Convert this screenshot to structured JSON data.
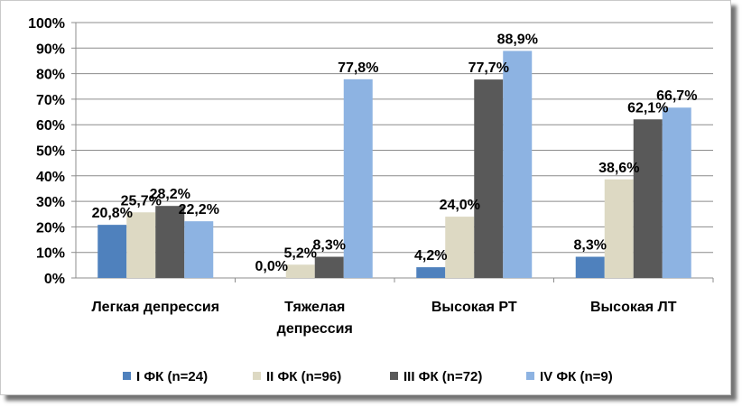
{
  "chart_data": {
    "type": "bar",
    "title": "",
    "xlabel": "",
    "ylabel": "",
    "ylim": [
      0,
      100
    ],
    "y_ticks": [
      "0%",
      "10%",
      "20%",
      "30%",
      "40%",
      "50%",
      "60%",
      "70%",
      "80%",
      "90%",
      "100%"
    ],
    "grid": true,
    "legend_position": "bottom",
    "categories": [
      [
        "Легкая депрессия"
      ],
      [
        "Тяжелая",
        "депрессия"
      ],
      [
        "Высокая РТ"
      ],
      [
        "Высокая ЛТ"
      ]
    ],
    "series": [
      {
        "name": "I ФК (n=24)",
        "color": "#4f81bd",
        "values": [
          20.8,
          0.0,
          4.2,
          8.3
        ],
        "labels": [
          "20,8%",
          "0,0%",
          "4,2%",
          "8,3%"
        ]
      },
      {
        "name": "II ФК (n=96)",
        "color": "#ddd9c3",
        "values": [
          25.7,
          5.2,
          24.0,
          38.6
        ],
        "labels": [
          "25,7%",
          "5,2%",
          "24,0%",
          "38,6%"
        ]
      },
      {
        "name": "III ФК (n=72)",
        "color": "#595959",
        "values": [
          28.2,
          8.3,
          77.7,
          62.1
        ],
        "labels": [
          "28,2%",
          "8,3%",
          "77,7%",
          "62,1%"
        ]
      },
      {
        "name": "IV ФК (n=9)",
        "color": "#8db3e2",
        "values": [
          22.2,
          77.8,
          88.9,
          66.7
        ],
        "labels": [
          "22,2%",
          "77,8%",
          "88,9%",
          "66,7%"
        ]
      }
    ]
  }
}
